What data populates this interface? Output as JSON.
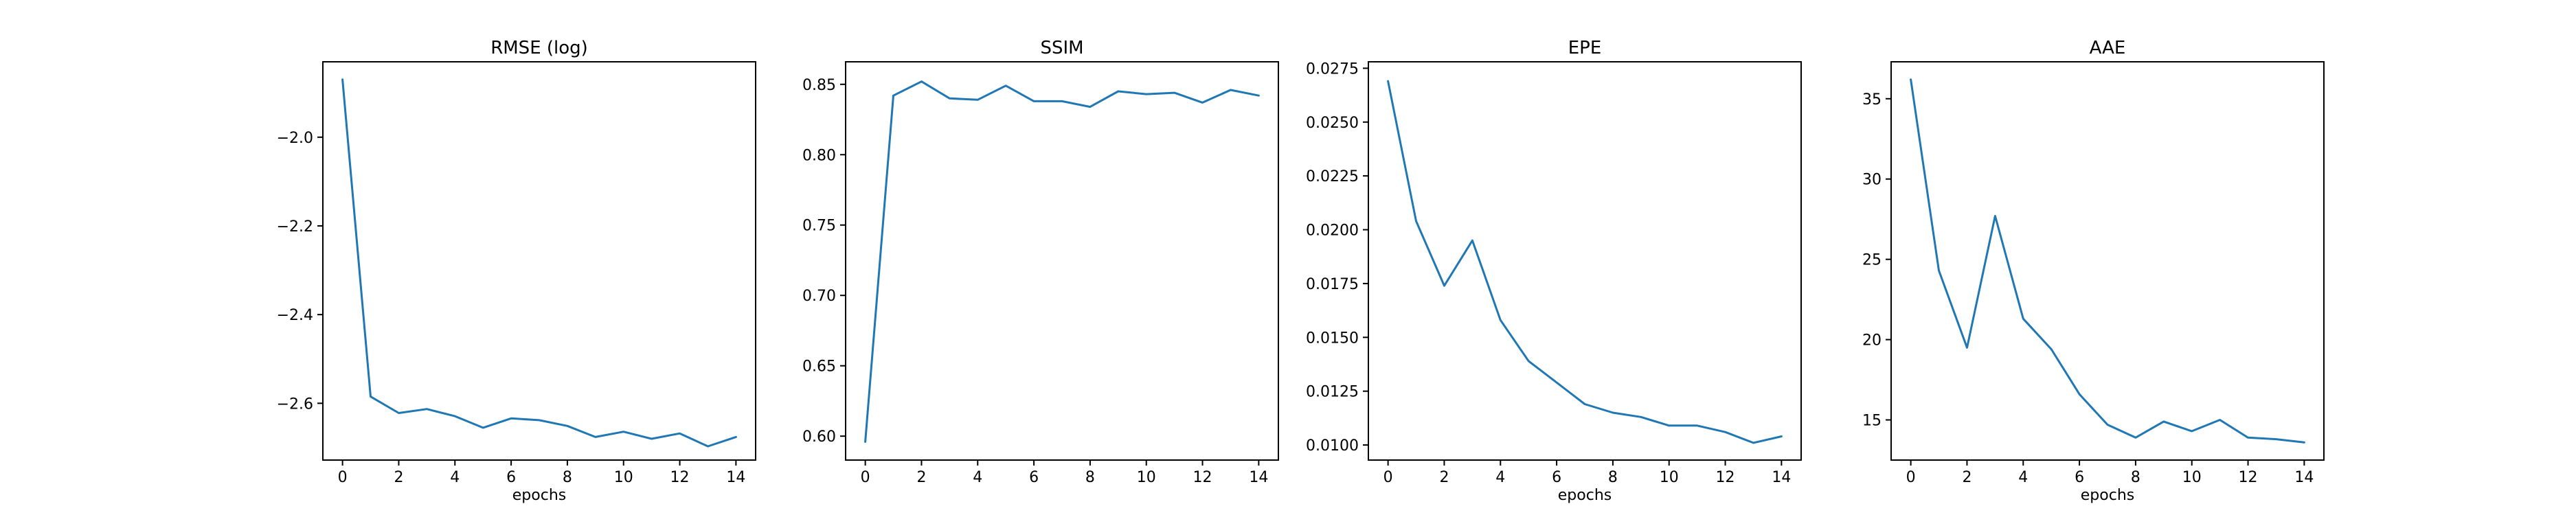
{
  "chart_data": [
    {
      "type": "line",
      "title": "RMSE (log)",
      "xlabel": "epochs",
      "ylabel": "",
      "x": [
        0,
        1,
        2,
        3,
        4,
        5,
        6,
        7,
        8,
        9,
        10,
        11,
        12,
        13,
        14
      ],
      "series": [
        {
          "values": [
            -1.87,
            -2.585,
            -2.622,
            -2.613,
            -2.629,
            -2.655,
            -2.634,
            -2.638,
            -2.651,
            -2.676,
            -2.664,
            -2.68,
            -2.668,
            -2.697,
            -2.676
          ]
        }
      ],
      "xlim": [
        -0.7,
        14.7
      ],
      "ylim": [
        -2.728,
        -1.83
      ],
      "xticks": [
        0,
        2,
        4,
        6,
        8,
        10,
        12,
        14
      ],
      "yticks": [
        -2.0,
        -2.2,
        -2.4,
        -2.6
      ],
      "ytick_labels": [
        "−2.0",
        "−2.2",
        "−2.4",
        "−2.6"
      ],
      "grid": false,
      "color": "#1f77b4"
    },
    {
      "type": "line",
      "title": "SSIM",
      "xlabel": "",
      "ylabel": "",
      "x": [
        0,
        1,
        2,
        3,
        4,
        5,
        6,
        7,
        8,
        9,
        10,
        11,
        12,
        13,
        14
      ],
      "series": [
        {
          "values": [
            0.596,
            0.842,
            0.852,
            0.84,
            0.839,
            0.849,
            0.838,
            0.838,
            0.834,
            0.845,
            0.843,
            0.844,
            0.837,
            0.846,
            0.842
          ]
        }
      ],
      "xlim": [
        -0.7,
        14.7
      ],
      "ylim": [
        0.583,
        0.866
      ],
      "xticks": [
        0,
        2,
        4,
        6,
        8,
        10,
        12,
        14
      ],
      "yticks": [
        0.6,
        0.65,
        0.7,
        0.75,
        0.8,
        0.85
      ],
      "ytick_labels": [
        "0.60",
        "0.65",
        "0.70",
        "0.75",
        "0.80",
        "0.85"
      ],
      "grid": false,
      "color": "#1f77b4"
    },
    {
      "type": "line",
      "title": "EPE",
      "xlabel": "epochs",
      "ylabel": "",
      "x": [
        0,
        1,
        2,
        3,
        4,
        5,
        6,
        7,
        8,
        9,
        10,
        11,
        12,
        13,
        14
      ],
      "series": [
        {
          "values": [
            0.0269,
            0.0204,
            0.0174,
            0.0195,
            0.0158,
            0.0139,
            0.0129,
            0.0119,
            0.0115,
            0.0113,
            0.0109,
            0.0109,
            0.0106,
            0.0101,
            0.0104
          ]
        }
      ],
      "xlim": [
        -0.7,
        14.7
      ],
      "ylim": [
        0.0093,
        0.0278
      ],
      "xticks": [
        0,
        2,
        4,
        6,
        8,
        10,
        12,
        14
      ],
      "yticks": [
        0.01,
        0.0125,
        0.015,
        0.0175,
        0.02,
        0.0225,
        0.025,
        0.0275
      ],
      "ytick_labels": [
        "0.0100",
        "0.0125",
        "0.0150",
        "0.0175",
        "0.0200",
        "0.0225",
        "0.0250",
        "0.0275"
      ],
      "grid": false,
      "color": "#1f77b4"
    },
    {
      "type": "line",
      "title": "AAE",
      "xlabel": "epochs",
      "ylabel": "",
      "x": [
        0,
        1,
        2,
        3,
        4,
        5,
        6,
        7,
        8,
        9,
        10,
        11,
        12,
        13,
        14
      ],
      "series": [
        {
          "values": [
            36.2,
            24.3,
            19.5,
            27.7,
            21.3,
            19.4,
            16.6,
            14.7,
            13.9,
            14.9,
            14.3,
            15.0,
            13.9,
            13.8,
            13.6
          ]
        }
      ],
      "xlim": [
        -0.7,
        14.7
      ],
      "ylim": [
        12.5,
        37.3
      ],
      "xticks": [
        0,
        2,
        4,
        6,
        8,
        10,
        12,
        14
      ],
      "yticks": [
        15,
        20,
        25,
        30,
        35
      ],
      "ytick_labels": [
        "15",
        "20",
        "25",
        "30",
        "35"
      ],
      "grid": false,
      "color": "#1f77b4"
    }
  ]
}
